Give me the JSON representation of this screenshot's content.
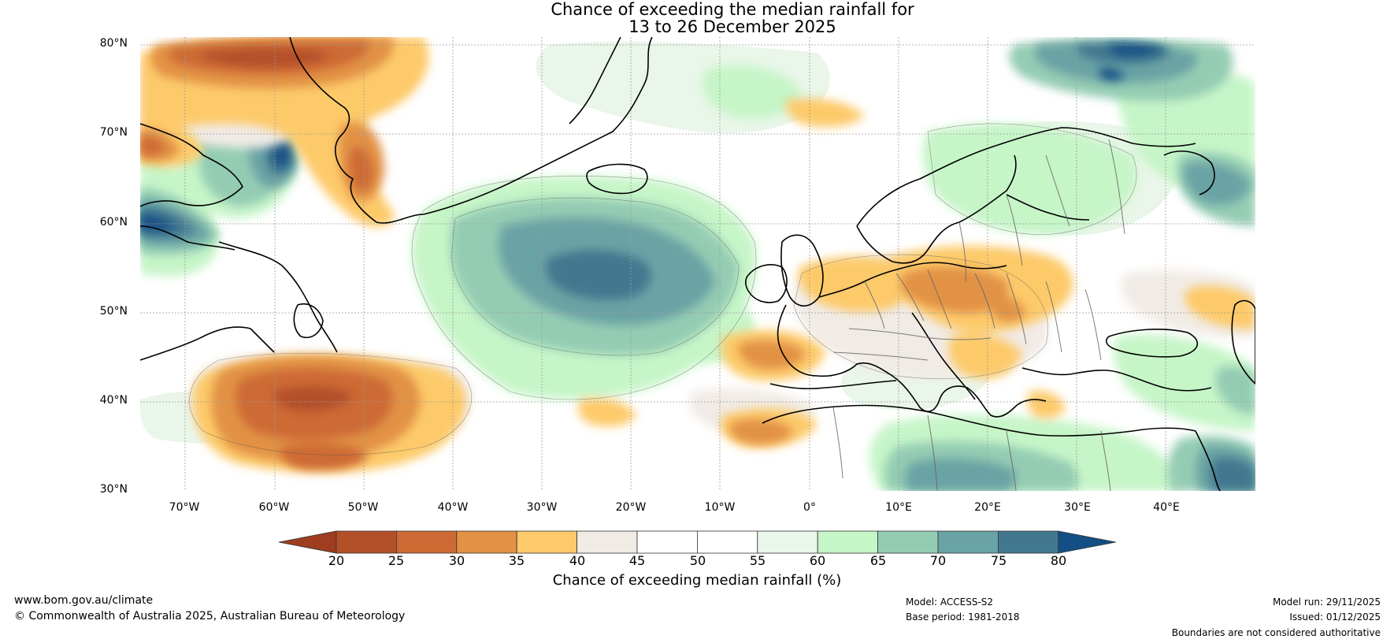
{
  "title": {
    "line1": "Chance of exceeding the median rainfall for",
    "line2": "13 to 26 December 2025"
  },
  "latitude_labels": [
    "80°N",
    "70°N",
    "60°N",
    "50°N",
    "40°N",
    "30°N"
  ],
  "longitude_labels": [
    "70°W",
    "60°W",
    "50°W",
    "40°W",
    "30°W",
    "20°W",
    "10°W",
    "0°",
    "10°E",
    "20°E",
    "30°E",
    "40°E"
  ],
  "colorbar": {
    "ticks": [
      "20",
      "25",
      "30",
      "35",
      "40",
      "45",
      "50",
      "55",
      "60",
      "65",
      "70",
      "75",
      "80"
    ],
    "colors": [
      "#9e3d1f",
      "#b3502a",
      "#cd6a34",
      "#e29244",
      "#fdca6a",
      "#f1ebe6",
      "#ffffff",
      "#ffffff",
      "#e9f6e9",
      "#c6f5c8",
      "#94ccb3",
      "#6aa3a5",
      "#42788f",
      "#134f85"
    ],
    "label": "Chance of exceeding median rainfall (%)"
  },
  "footer": {
    "website": "www.bom.gov.au/climate",
    "copyright": "© Commonwealth of Australia 2025, Australian Bureau of Meteorology",
    "model": "Model: ACCESS-S2",
    "base_period": "Base period: 1981-2018",
    "model_run": "Model run: 29/11/2025",
    "issued": "Issued: 01/12/2025",
    "disclaimer": "Boundaries are not considered authoritative"
  }
}
